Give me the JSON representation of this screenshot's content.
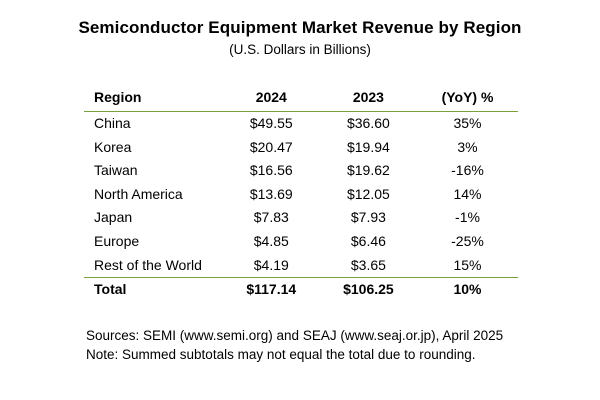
{
  "title": "Semiconductor Equipment Market Revenue by Region",
  "subtitle": "(U.S. Dollars in Billions)",
  "table": {
    "headers": {
      "region": "Region",
      "y2024": "2024",
      "y2023": "2023",
      "yoy": "(YoY) %"
    },
    "rows": [
      {
        "region": "China",
        "y2024": "$49.55",
        "y2023": "$36.60",
        "yoy": "35%"
      },
      {
        "region": "Korea",
        "y2024": "$20.47",
        "y2023": "$19.94",
        "yoy": "3%"
      },
      {
        "region": "Taiwan",
        "y2024": "$16.56",
        "y2023": "$19.62",
        "yoy": "-16%"
      },
      {
        "region": "North America",
        "y2024": "$13.69",
        "y2023": "$12.05",
        "yoy": "14%"
      },
      {
        "region": "Japan",
        "y2024": "$7.83",
        "y2023": "$7.93",
        "yoy": "-1%"
      },
      {
        "region": "Europe",
        "y2024": "$4.85",
        "y2023": "$6.46",
        "yoy": "-25%"
      },
      {
        "region": "Rest of the World",
        "y2024": "$4.19",
        "y2023": "$3.65",
        "yoy": "15%"
      }
    ],
    "total": {
      "region": "Total",
      "y2024": "$117.14",
      "y2023": "$106.25",
      "yoy": "10%"
    }
  },
  "notes": {
    "sources": "Sources: SEMI (www.semi.org) and SEAJ (www.seaj.or.jp), April 2025",
    "note": "Note: Summed subtotals may not equal the total due to rounding."
  },
  "colors": {
    "rule": "#7aa03c"
  }
}
